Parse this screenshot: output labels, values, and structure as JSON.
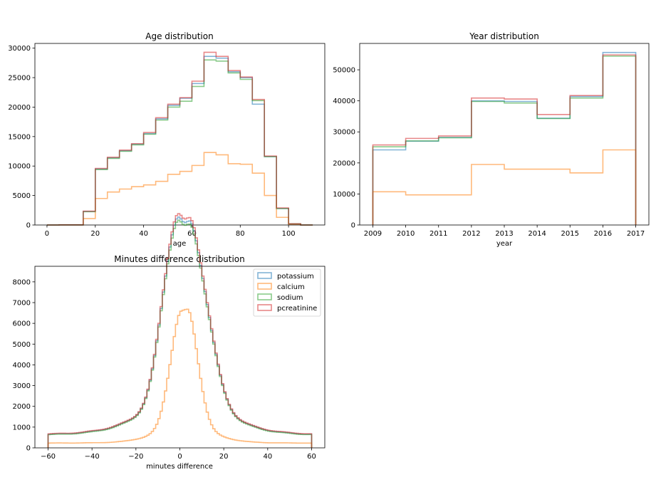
{
  "chart_data": [
    {
      "type": "step",
      "title": "Age distribution",
      "xlabel": "age",
      "ylabel": "",
      "xlim": [
        -5,
        115
      ],
      "ylim": [
        0,
        30800
      ],
      "xticks": [
        "0",
        "20",
        "40",
        "60",
        "80",
        "100"
      ],
      "yticks": [
        "0",
        "5000",
        "10000",
        "15000",
        "20000",
        "25000",
        "30000"
      ],
      "edges": [
        0,
        5,
        10,
        15,
        20,
        25,
        30,
        35,
        40,
        45,
        50,
        55,
        60,
        65,
        70,
        75,
        80,
        85,
        90,
        95,
        100,
        105,
        110
      ],
      "series": [
        {
          "name": "potassium",
          "color": "#1f77b4",
          "values": [
            0,
            20,
            20,
            2300,
            9500,
            11400,
            12600,
            13700,
            15500,
            18000,
            20300,
            21500,
            24000,
            28600,
            28300,
            26000,
            25000,
            20500,
            11600,
            2800,
            200,
            0
          ]
        },
        {
          "name": "calcium",
          "color": "#ff7f0e",
          "values": [
            0,
            10,
            10,
            1100,
            4500,
            5600,
            6100,
            6500,
            6800,
            7400,
            8600,
            9100,
            10100,
            12300,
            11900,
            10400,
            10300,
            8800,
            5000,
            1300,
            100,
            0
          ]
        },
        {
          "name": "sodium",
          "color": "#2ca02c",
          "values": [
            0,
            20,
            20,
            2250,
            9400,
            11300,
            12500,
            13600,
            15400,
            17800,
            20000,
            21000,
            23500,
            28000,
            27800,
            25800,
            24700,
            21100,
            11600,
            2800,
            200,
            0
          ]
        },
        {
          "name": "pcreatinine",
          "color": "#d62728",
          "values": [
            0,
            20,
            20,
            2350,
            9600,
            11500,
            12700,
            13800,
            15700,
            18200,
            20500,
            21600,
            24400,
            29300,
            28600,
            26200,
            25100,
            21300,
            11700,
            2900,
            200,
            0
          ]
        }
      ]
    },
    {
      "type": "step",
      "title": "Year distribution",
      "xlabel": "year",
      "ylabel": "",
      "xlim": [
        2008.6,
        2017.4
      ],
      "ylim": [
        0,
        58500
      ],
      "xticks": [
        "2009",
        "2010",
        "2011",
        "2012",
        "2013",
        "2014",
        "2015",
        "2016",
        "2017"
      ],
      "yticks": [
        "0",
        "10000",
        "20000",
        "30000",
        "40000",
        "50000"
      ],
      "edges": [
        2009,
        2010,
        2011,
        2012,
        2013,
        2014,
        2015,
        2016,
        2017
      ],
      "series": [
        {
          "name": "potassium",
          "color": "#1f77b4",
          "values": [
            24200,
            27000,
            28200,
            40000,
            39800,
            34400,
            41400,
            55600
          ]
        },
        {
          "name": "calcium",
          "color": "#ff7f0e",
          "values": [
            10700,
            9700,
            9700,
            19500,
            18000,
            18000,
            16800,
            24200
          ]
        },
        {
          "name": "sodium",
          "color": "#2ca02c",
          "values": [
            25200,
            27100,
            28100,
            39800,
            39300,
            34300,
            40900,
            54400
          ]
        },
        {
          "name": "pcreatinine",
          "color": "#d62728",
          "values": [
            25800,
            27900,
            28700,
            40900,
            40600,
            35600,
            41700,
            54800
          ]
        }
      ]
    },
    {
      "type": "step",
      "title": "Minutes difference distribution",
      "xlabel": "minutes difference",
      "ylabel": "",
      "xlim": [
        -66,
        66
      ],
      "ylim": [
        0,
        8750
      ],
      "xticks": [
        "-60",
        "-40",
        "-20",
        "0",
        "20",
        "40",
        "60"
      ],
      "yticks": [
        "0",
        "1000",
        "2000",
        "3000",
        "4000",
        "5000",
        "6000",
        "7000",
        "8000"
      ],
      "bins": {
        "start": -60,
        "end": 60,
        "count": 120
      },
      "legend": {
        "location": "top-right",
        "entries": [
          "potassium",
          "calcium",
          "sodium",
          "pcreatinine"
        ]
      },
      "series": [
        {
          "name": "potassium",
          "color": "#1f77b4",
          "profile": {
            "base": 650,
            "base_slope": 2.2,
            "peaks": [
              [
                -3,
                6200,
                6
              ],
              [
                7,
                6500,
                7
              ],
              [
                2,
                1500,
                18
              ]
            ],
            "dip": [
              2,
              1000,
              2
            ]
          }
        },
        {
          "name": "calcium",
          "color": "#ff7f0e",
          "profile": {
            "base": 230,
            "base_slope": 0.5,
            "peaks": [
              [
                -1,
                3800,
                4.5
              ],
              [
                5,
                3800,
                4.5
              ],
              [
                2,
                700,
                13
              ]
            ],
            "dip": [
              2,
              500,
              1.5
            ]
          }
        },
        {
          "name": "sodium",
          "color": "#2ca02c",
          "profile": {
            "base": 630,
            "base_slope": 2.0,
            "peaks": [
              [
                -3,
                6100,
                6
              ],
              [
                7,
                6400,
                7
              ],
              [
                2,
                1500,
                18
              ]
            ],
            "dip": [
              2,
              950,
              2
            ]
          }
        },
        {
          "name": "pcreatinine",
          "color": "#d62728",
          "profile": {
            "base": 670,
            "base_slope": 2.2,
            "peaks": [
              [
                -3,
                6300,
                6
              ],
              [
                7,
                6600,
                7
              ],
              [
                2,
                1500,
                18
              ]
            ],
            "dip": [
              2,
              1000,
              2
            ]
          }
        }
      ]
    }
  ]
}
